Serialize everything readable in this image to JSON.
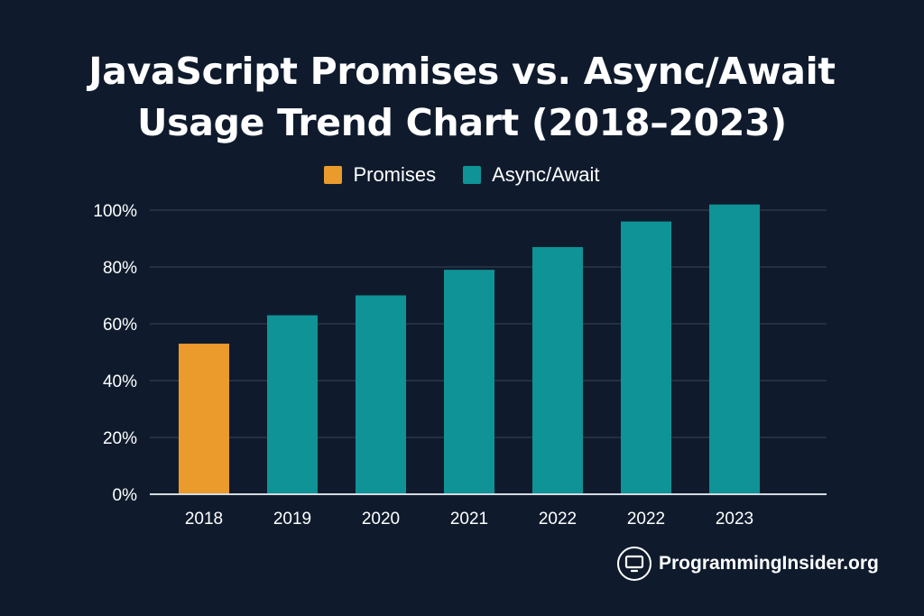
{
  "title_line1": "JavaScript Promises vs. Async/Await",
  "title_line2": "Usage Trend Chart (2018–2023)",
  "watermark": "ProgrammingInsider.org",
  "icons": {
    "brand": "monitor-icon"
  },
  "colors": {
    "background": "#0f1b2d",
    "promises": "#eb9a2c",
    "async_await": "#0f9396",
    "grid": "#3a4658",
    "axis": "#d6dbe2"
  },
  "chart_data": {
    "type": "bar",
    "title": "JavaScript Promises vs. Async/Await Usage Trend Chart (2018–2023)",
    "categories": [
      "2018",
      "2019",
      "2020",
      "2021",
      "2022",
      "2022",
      "2023"
    ],
    "series": [
      {
        "name": "Promises",
        "color": "#eb9a2c",
        "values": [
          53,
          null,
          null,
          null,
          null,
          null,
          null
        ]
      },
      {
        "name": "Async/Await",
        "color": "#0f9396",
        "values": [
          null,
          63,
          70,
          79,
          87,
          96,
          102
        ]
      }
    ],
    "yticks": [
      "0%",
      "20%",
      "40%",
      "60%",
      "80%",
      "100%"
    ],
    "ylim": [
      0,
      100
    ],
    "xlabel": "",
    "ylabel": "",
    "grid": true,
    "legend": "top-center"
  }
}
